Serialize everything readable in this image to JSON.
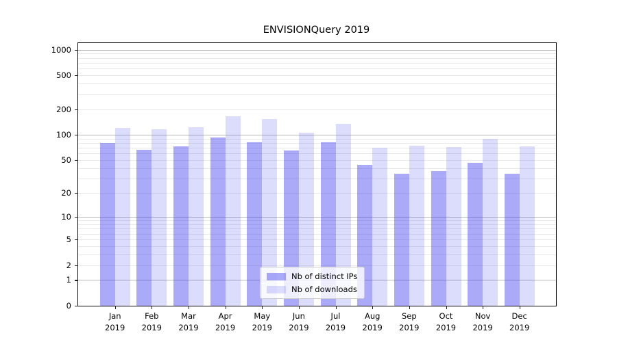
{
  "chart_data": {
    "type": "bar",
    "title": "ENVISIONQuery 2019",
    "categories": [
      "Jan",
      "Feb",
      "Mar",
      "Apr",
      "May",
      "Jun",
      "Jul",
      "Aug",
      "Sep",
      "Oct",
      "Nov",
      "Dec"
    ],
    "year_label": "2019",
    "series": [
      {
        "name": "Nb of distinct IPs",
        "color": "rgba(58,58,242,0.43)",
        "values": [
          80,
          66,
          73,
          92,
          82,
          65,
          81,
          44,
          34,
          37,
          46,
          34
        ]
      },
      {
        "name": "Nb of downloads",
        "color": "rgba(58,58,242,0.175)",
        "values": [
          121,
          115,
          123,
          164,
          154,
          106,
          135,
          70,
          74,
          72,
          90,
          73
        ]
      }
    ],
    "xlabel": "",
    "ylabel": "",
    "yscale": "log10(value+1)",
    "ylim": [
      0,
      1210
    ],
    "yticks": [
      1000,
      500,
      200,
      100,
      50,
      20,
      10,
      5,
      2,
      1,
      0
    ],
    "major_gridlines": [
      1,
      10,
      100,
      1000
    ],
    "minor_gridlines": [
      2,
      3,
      4,
      5,
      6,
      7,
      8,
      9,
      20,
      30,
      40,
      50,
      60,
      70,
      80,
      90,
      200,
      300,
      400,
      500,
      600,
      700,
      800,
      900
    ],
    "grid": true,
    "legend_position": "lower center",
    "colors": {
      "major_grid": "#b4b4b4",
      "minor_grid": "#e8e8e8",
      "spine": "#000000",
      "legend_border": "#cccccc",
      "background": "#ffffff"
    }
  }
}
